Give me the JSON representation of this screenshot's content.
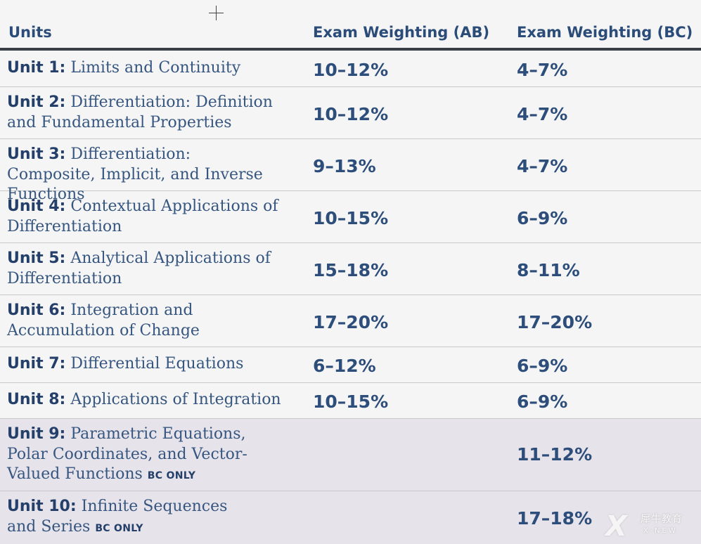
{
  "header": {
    "units": "Units",
    "ab": "Exam Weighting (AB)",
    "bc": "Exam Weighting (BC)"
  },
  "rows": [
    {
      "tag": "Unit 1:",
      "title": "Limits and Continuity",
      "suffix": "",
      "ab": "10–12%",
      "bc": "4–7%"
    },
    {
      "tag": "Unit 2:",
      "title": "Differentiation: Definition and Fundamental Properties",
      "suffix": "",
      "ab": "10–12%",
      "bc": "4–7%"
    },
    {
      "tag": "Unit 3:",
      "title": "Differentiation: Composite, Implicit, and Inverse Functions",
      "suffix": "",
      "ab": "9–13%",
      "bc": "4–7%"
    },
    {
      "tag": "Unit 4:",
      "title": "Contextual Applications of Differentiation",
      "suffix": "",
      "ab": "10–15%",
      "bc": "6–9%"
    },
    {
      "tag": "Unit 5:",
      "title": "Analytical Applications of Differentiation",
      "suffix": "",
      "ab": "15–18%",
      "bc": "8–11%"
    },
    {
      "tag": "Unit 6:",
      "title": "Integration and Accumulation of Change",
      "suffix": "",
      "ab": "17–20%",
      "bc": "17–20%"
    },
    {
      "tag": "Unit 7:",
      "title": "Differential Equations",
      "suffix": "",
      "ab": "6–12%",
      "bc": "6–9%"
    },
    {
      "tag": "Unit 8:",
      "title": "Applications of Integration",
      "suffix": "",
      "ab": "10–15%",
      "bc": "6–9%"
    },
    {
      "tag": "Unit 9:",
      "title": "Parametric Equations, Polar Coordinates, and Vector-Valued Functions",
      "suffix": "BC ONLY",
      "ab": "",
      "bc": "11–12%"
    },
    {
      "tag": "Unit 10:",
      "title": "Infinite Sequences and Series",
      "suffix": "BC ONLY",
      "ab": "",
      "bc": "17–18%"
    }
  ],
  "watermark": {
    "logo": "X",
    "cn": "犀牛教育",
    "en": "X-NEW"
  }
}
